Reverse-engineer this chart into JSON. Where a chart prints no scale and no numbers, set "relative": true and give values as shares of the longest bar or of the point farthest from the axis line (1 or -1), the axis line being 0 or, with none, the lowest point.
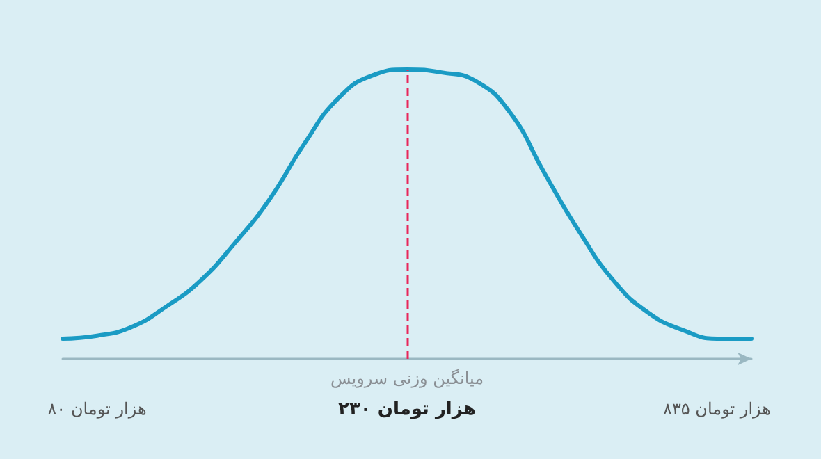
{
  "chart_data": {
    "type": "line",
    "relative": true,
    "categories": [
      null,
      "۸۰ هزار تومان",
      null,
      null,
      null,
      null,
      null,
      null,
      null,
      null,
      "۲۳۰ هزار تومان",
      null,
      null,
      null,
      null,
      null,
      null,
      null,
      null,
      "۸۳۵ هزار تومان",
      null
    ],
    "series": [
      {
        "color": "#1a9bc4",
        "values": [
          0.07,
          0.08,
          0.11,
          0.18,
          0.27,
          0.4,
          0.55,
          0.74,
          0.9,
          0.98,
          1,
          0.99,
          0.96,
          0.85,
          0.64,
          0.44,
          0.27,
          0.16,
          0.1,
          0.07,
          0.07
        ]
      }
    ],
    "ref_lines": [
      {
        "axis": "x",
        "value": "۲۳۰ هزار تومان",
        "label": "میانگین وزنی سرویس",
        "color": "#e8275a",
        "line_style": "dashed"
      }
    ],
    "marker": "none",
    "line_style": "solid",
    "grid": false
  }
}
